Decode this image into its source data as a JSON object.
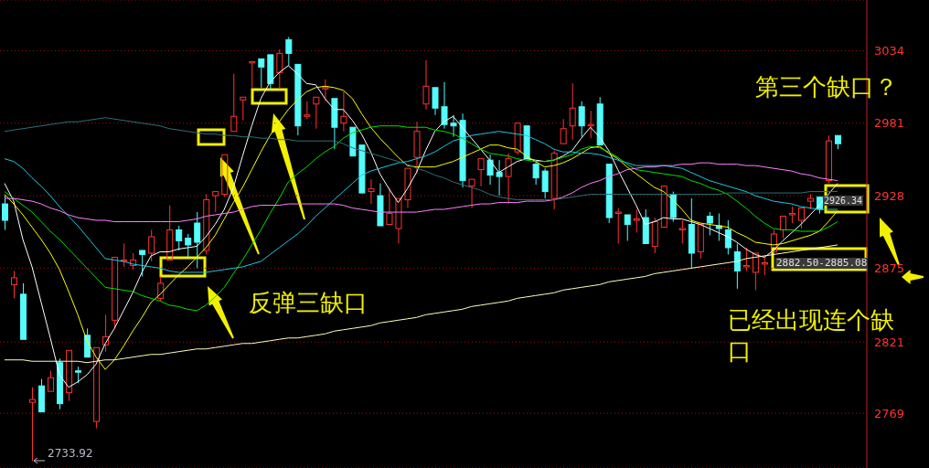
{
  "chart_data": {
    "type": "candlestick",
    "categories": [
      null,
      null,
      null,
      null,
      null,
      null,
      null,
      null,
      null,
      null,
      null,
      null,
      null,
      null,
      null,
      null,
      null,
      null,
      null,
      null,
      null,
      null,
      null,
      null,
      null,
      null,
      null,
      null,
      null,
      null,
      null,
      null,
      null,
      null,
      null,
      null,
      null,
      null,
      null,
      null,
      null,
      null,
      null,
      null,
      null,
      null,
      null,
      null,
      null,
      null,
      null,
      null,
      null,
      null,
      null,
      null,
      null,
      null,
      null,
      null,
      null,
      null,
      null,
      null,
      null,
      null,
      null,
      null,
      null,
      null,
      null,
      null,
      null,
      null,
      null,
      null,
      null,
      null,
      null,
      null,
      null,
      null,
      null,
      null,
      null,
      null,
      null,
      null,
      null,
      null,
      null,
      null
    ],
    "ohlc": [
      [
        2922,
        2928,
        2903,
        2910
      ],
      [
        2863,
        2873,
        2853,
        2868
      ],
      [
        2856,
        2864,
        2823,
        2823
      ],
      [
        2777,
        2788,
        2733.92,
        2779
      ],
      [
        2789,
        2794,
        2770,
        2770
      ],
      [
        2785,
        2800,
        2785,
        2795
      ],
      [
        2806,
        2809,
        2772,
        2776
      ],
      [
        2784,
        2815,
        2778,
        2815
      ],
      [
        2800,
        2803,
        2791,
        2799
      ],
      [
        2826,
        2831,
        2810,
        2810
      ],
      [
        2763,
        2817,
        2758,
        2817
      ],
      [
        2819,
        2841,
        2814,
        2825
      ],
      [
        2837,
        2883,
        2831,
        2883
      ],
      [
        2880,
        2893,
        2876,
        2881
      ],
      [
        2877,
        2886,
        2874,
        2881
      ],
      [
        2888,
        2888,
        2869,
        2885
      ],
      [
        2886,
        2903,
        2880,
        2898
      ],
      [
        2853,
        2869,
        2851,
        2864
      ],
      [
        2881,
        2921,
        2881,
        2903
      ],
      [
        2903,
        2906,
        2888,
        2895
      ],
      [
        2897,
        2900,
        2883,
        2892
      ],
      [
        2908,
        2916,
        2875,
        2894
      ],
      [
        2888,
        2929,
        2885,
        2925
      ],
      [
        2928,
        2931,
        2916,
        2931
      ],
      [
        2929,
        2958,
        2927,
        2958
      ],
      [
        2975,
        3017,
        2975,
        2986
      ],
      [
        2998,
        3000,
        2983,
        3000
      ],
      [
        3025,
        3026,
        3007,
        3026
      ],
      [
        3028,
        3028,
        3007,
        3022
      ],
      [
        3031,
        3031,
        3006,
        3010
      ],
      [
        3018,
        3035,
        3006,
        3032
      ],
      [
        3042,
        3044,
        3023,
        3032
      ],
      [
        3024,
        3024,
        2972,
        2979
      ],
      [
        2986,
        2997,
        2984,
        2987
      ],
      [
        2995,
        3000,
        2977,
        3000
      ],
      [
        3006,
        3013,
        2997,
        3007
      ],
      [
        2999,
        2999,
        2962,
        2978
      ],
      [
        2981,
        3004,
        2975,
        2986
      ],
      [
        2978,
        2978,
        2957,
        2957
      ],
      [
        2965,
        2965,
        2930,
        2930
      ],
      [
        2931,
        2940,
        2922,
        2933
      ],
      [
        2928,
        2937,
        2906,
        2906
      ],
      [
        2907,
        2934,
        2907,
        2915
      ],
      [
        2904,
        2926,
        2893,
        2926
      ],
      [
        2925,
        2948,
        2919,
        2948
      ],
      [
        2956,
        2982,
        2944,
        2975
      ],
      [
        2995,
        3027,
        2991,
        3008
      ],
      [
        3007,
        3007,
        2987,
        2992
      ],
      [
        2993,
        3011,
        2977,
        2980
      ],
      [
        2981,
        2987,
        2971,
        2979
      ],
      [
        2983,
        2988,
        2934,
        2939
      ],
      [
        2935,
        2940,
        2919,
        2940
      ],
      [
        2947,
        2955,
        2935,
        2955
      ],
      [
        2954,
        2958,
        2936,
        2943
      ],
      [
        2945,
        2954,
        2928,
        2942
      ],
      [
        2942,
        2959,
        2922,
        2955
      ],
      [
        2960,
        2981,
        2958,
        2981
      ],
      [
        2979,
        2979,
        2955,
        2955
      ],
      [
        2951,
        2953,
        2936,
        2941
      ],
      [
        2946,
        2948,
        2926,
        2931
      ],
      [
        2926,
        2961,
        2918,
        2959
      ],
      [
        2966,
        2984,
        2966,
        2977
      ],
      [
        2979,
        3010,
        2969,
        2992
      ],
      [
        2993,
        2997,
        2971,
        2979
      ],
      [
        2979,
        2990,
        2970,
        2980
      ],
      [
        2995,
        3000,
        2965,
        2965
      ],
      [
        2951,
        2951,
        2908,
        2912
      ],
      [
        2915,
        2919,
        2893,
        2916
      ],
      [
        2914,
        2914,
        2895,
        2907
      ],
      [
        2910,
        2918,
        2901,
        2911
      ],
      [
        2912,
        2918,
        2893,
        2893
      ],
      [
        2891,
        2912,
        2886,
        2909
      ],
      [
        2905,
        2935,
        2905,
        2935
      ],
      [
        2929,
        2931,
        2909,
        2912
      ],
      [
        2903,
        2910,
        2893,
        2904
      ],
      [
        2907,
        2926,
        2875,
        2886
      ],
      [
        2887,
        2907,
        2882,
        2907
      ],
      [
        2913,
        2916,
        2899,
        2908
      ],
      [
        2906,
        2915,
        2895,
        2904
      ],
      [
        2903,
        2910,
        2885,
        2890
      ],
      [
        2887,
        2893,
        2860,
        2873
      ],
      [
        2876,
        2890,
        2873,
        2877
      ],
      [
        2872,
        2886,
        2859,
        2886
      ],
      [
        2878,
        2883,
        2870,
        2879
      ],
      [
        2887,
        2903,
        2887,
        2900
      ],
      [
        2903,
        2913,
        2897,
        2913
      ],
      [
        2914,
        2920,
        2908,
        2915
      ],
      [
        2910,
        2919,
        2904,
        2919
      ],
      [
        2924,
        2929,
        2918,
        2926
      ],
      [
        2927,
        2927,
        2915,
        2918
      ],
      [
        2939,
        2972,
        2937,
        2968
      ],
      [
        2972,
        2972,
        2962,
        2966
      ]
    ],
    "colors": [
      "#54fcfc",
      "#ff3232",
      "#54fcfc",
      "#ff3232",
      "#54fcfc",
      "#ff3232",
      "#54fcfc",
      "#ff3232",
      "#54fcfc",
      "#54fcfc",
      "#ff3232",
      "#ff3232",
      "#ff3232",
      "#ff3232",
      "#ff3232",
      "#54fcfc",
      "#ff3232",
      "#ff3232",
      "#ff3232",
      "#54fcfc",
      "#54fcfc",
      "#54fcfc",
      "#ff3232",
      "#ff3232",
      "#ff3232",
      "#ff3232",
      "#ff3232",
      "#ff3232",
      "#54fcfc",
      "#54fcfc",
      "#ff3232",
      "#54fcfc",
      "#54fcfc",
      "#ff3232",
      "#ff3232",
      "#ff3232",
      "#54fcfc",
      "#ff3232",
      "#54fcfc",
      "#54fcfc",
      "#ff3232",
      "#54fcfc",
      "#ff3232",
      "#ff3232",
      "#ff3232",
      "#ff3232",
      "#ff3232",
      "#54fcfc",
      "#54fcfc",
      "#54fcfc",
      "#54fcfc",
      "#ff3232",
      "#ff3232",
      "#54fcfc",
      "#54fcfc",
      "#ff3232",
      "#ff3232",
      "#54fcfc",
      "#54fcfc",
      "#54fcfc",
      "#ff3232",
      "#ff3232",
      "#ff3232",
      "#54fcfc",
      "#ff3232",
      "#54fcfc",
      "#54fcfc",
      "#ff3232",
      "#54fcfc",
      "#ff3232",
      "#54fcfc",
      "#ff3232",
      "#ff3232",
      "#54fcfc",
      "#ff3232",
      "#54fcfc",
      "#ff3232",
      "#54fcfc",
      "#54fcfc",
      "#54fcfc",
      "#54fcfc",
      "#ff3232",
      "#ff3232",
      "#ff3232",
      "#ff3232",
      "#ff3232",
      "#ff3232",
      "#ff3232",
      "#ff3232",
      "#54fcfc",
      "#ff3232",
      "#54fcfc"
    ],
    "series": [
      {
        "type": "line",
        "color": "#ffffff",
        "values": [
          2937,
          2924,
          2896,
          2876,
          2850,
          2824,
          2797,
          2788,
          2792,
          2797,
          2805,
          2820,
          2831,
          2844,
          2857,
          2872,
          2884,
          2887,
          2887,
          2889,
          2890,
          2891,
          2898,
          2907,
          2918,
          2934,
          2957,
          2979,
          2999,
          3011,
          3018,
          3023,
          3017,
          3010,
          3009,
          2999,
          2991,
          2991,
          2983,
          2973,
          2960,
          2944,
          2933,
          2923,
          2933,
          2945,
          2961,
          2975,
          2982,
          2986,
          null,
          2970,
          2962,
          2954,
          2945,
          2949,
          2953,
          2955,
          2954,
          2953,
          2954,
          2957,
          2961,
          2970,
          2978,
          2971,
          2961,
          2947,
          2934,
          2921,
          2907,
          2909,
          2912,
          2911,
          2911,
          2909,
          2907,
          2904,
          2901,
          2898,
          2894,
          2889,
          2885,
          2883,
          2888,
          2895,
          2901,
          2907,
          2914,
          2921,
          2929,
          2937
        ]
      },
      {
        "type": "line",
        "color": "#ffff00",
        "values": [
          2929,
          2922,
          2914,
          2905,
          2896,
          2886,
          2874,
          2858,
          2841,
          2822,
          2810,
          2801,
          2808,
          2818,
          2829,
          2839,
          2850,
          2856,
          2863,
          2870,
          2876,
          2883,
          2890,
          2899,
          2911,
          2923,
          2934,
          2947,
          2960,
          2972,
          2982,
          2991,
          2998,
          3004,
          3007,
          3008,
          3007,
          3005,
          2999,
          2988,
          2978,
          2970,
          2963,
          2956,
          2950,
          2949,
          2949,
          2949,
          2951,
          2953,
          2956,
          2959,
          2962,
          2965,
          2965,
          2963,
          2962,
          2957,
          2953,
          2949,
          2950,
          2952,
          2955,
          2959,
          2963,
          2964,
          2959,
          2955,
          2949,
          2944,
          2939,
          2934,
          2931,
          2925,
          2918,
          2910,
          2908,
          2907,
          2906,
          2905,
          2901,
          2898,
          2894,
          2893,
          2892,
          2893,
          2895,
          2897,
          2899,
          2902,
          2909,
          2917
        ]
      },
      {
        "type": "line",
        "color": "#00e000",
        "values": [
          2931,
          2926,
          2921,
          2916,
          2909,
          2902,
          2896,
          2889,
          2882,
          2875,
          2868,
          2861,
          2860,
          2859,
          2858,
          2855,
          2853,
          2851,
          2848,
          2847,
          2845,
          2844,
          2848,
          2854,
          2861,
          2871,
          2881,
          2892,
          2903,
          2915,
          2926,
          2938,
          2944,
          2949,
          2955,
          2960,
          2964,
          2970,
          2974,
          2976,
          2978,
          2979,
          2979,
          2979,
          2978,
          2978,
          2978,
          2976,
          2975,
          2973,
          2970,
          2966,
          2962,
          2959,
          2958,
          2957,
          2955,
          2954,
          2953,
          2953,
          2954,
          2956,
          2958,
          2962,
          2964,
          2963,
          2960,
          2956,
          2951,
          2947,
          2946,
          2945,
          2944,
          2943,
          2942,
          2939,
          2937,
          2934,
          2932,
          2929,
          2924,
          2919,
          2913,
          2908,
          2904,
          2903,
          2903,
          2902,
          2902,
          2902,
          2905,
          2909
        ]
      },
      {
        "type": "line",
        "color": "#1ec8e6",
        "values": [
          2955,
          2953,
          2948,
          2941,
          2935,
          2928,
          2920,
          2913,
          2906,
          2898,
          2890,
          2882,
          2881,
          2880,
          2878,
          2877,
          2876,
          2875,
          2873,
          2872,
          2872,
          2872,
          2872,
          2873,
          2874,
          2875,
          2876,
          2878,
          2880,
          2885,
          2890,
          2895,
          2900,
          2906,
          2913,
          2919,
          2925,
          2931,
          2937,
          2943,
          2946,
          2948,
          2950,
          2952,
          2953,
          2955,
          2957,
          2960,
          2964,
          2968,
          2970,
          2972,
          2973,
          2974,
          2975,
          2974,
          2973,
          2972,
          2969,
          2966,
          2962,
          2960,
          2960,
          2959,
          2959,
          2958,
          2956,
          2954,
          2952,
          2950,
          2950,
          2950,
          2950,
          2949,
          2948,
          2945,
          2942,
          2939,
          2937,
          2935,
          2933,
          2931,
          2928,
          2926,
          2924,
          2923,
          2922,
          2920,
          2919,
          2918,
          2918,
          2918
        ]
      },
      {
        "type": "line",
        "color": "#ff80ff",
        "values": [
          2926,
          2926,
          2925,
          2924,
          2922,
          2919,
          2917,
          2914,
          2912,
          2911,
          2910,
          2910,
          2909,
          2909,
          2909,
          2909,
          2909,
          2909,
          2909,
          2909,
          2910,
          2911,
          2913,
          2914,
          2915,
          2916,
          2918,
          2920,
          2921,
          2921,
          2921,
          2922,
          2922,
          2922,
          2922,
          2922,
          2922,
          2921,
          2919,
          2918,
          2917,
          2916,
          2916,
          2916,
          2916,
          2916,
          2917,
          2918,
          2918,
          2919,
          2920,
          2921,
          2922,
          2922,
          2923,
          2923,
          2923,
          2924,
          2924,
          2924,
          2925,
          2927,
          2930,
          2934,
          2937,
          2939,
          2942,
          2944,
          2947,
          2948,
          2949,
          2949,
          2950,
          2950,
          2951,
          2951,
          2952,
          2952,
          2951,
          2951,
          2951,
          2950,
          2950,
          2949,
          2948,
          2947,
          2946,
          2944,
          2943,
          2941,
          2940,
          2939
        ]
      },
      {
        "type": "line",
        "color": "#2e7078",
        "values": [
          2975,
          2976,
          2977,
          2978,
          2979,
          2980,
          2981,
          2982,
          2982,
          2983,
          2984,
          2985,
          2984,
          2983,
          2982,
          2981,
          2980,
          2979,
          2977,
          2976,
          2975,
          2974,
          2973,
          2973,
          2972,
          2972,
          2971,
          2971,
          2970,
          2970,
          2969,
          2969,
          2968,
          2968,
          2968,
          2968,
          2968,
          2966,
          2963,
          2961,
          2959,
          2957,
          2955,
          2953,
          2951,
          2948,
          2946,
          2943,
          2941,
          2938,
          2936,
          2934,
          2932,
          2929,
          2927,
          2926,
          2925,
          2925,
          2925,
          2925,
          2925,
          2926,
          2927,
          2928,
          2929,
          2929,
          2929,
          2929,
          2929,
          2929,
          2929,
          2929,
          2929,
          2929,
          2929,
          2929,
          2929,
          2929,
          2929,
          2930,
          2930,
          2930,
          2930,
          2930,
          2930,
          2930,
          2930,
          2930,
          2931,
          2931,
          2931,
          2931
        ]
      },
      {
        "type": "line",
        "color": "#ffffc0",
        "values": [
          2808,
          2808,
          2808,
          2807,
          2807,
          2807,
          2807,
          2807,
          2807,
          2806,
          2807,
          2808,
          2808,
          2809,
          2810,
          2811,
          2812,
          2812,
          2813,
          2814,
          2815,
          2816,
          2816,
          2817,
          2818,
          2819,
          2820,
          2820,
          2821,
          2822,
          2823,
          2824,
          2824,
          2825,
          2826,
          2827,
          2829,
          2830,
          2831,
          2832,
          2833,
          2835,
          2836,
          2837,
          2838,
          2839,
          2841,
          2842,
          2843,
          2844,
          2845,
          2847,
          2848,
          2849,
          2850,
          2851,
          2853,
          2854,
          2855,
          2856,
          2857,
          2859,
          2860,
          2861,
          2862,
          2863,
          2865,
          2866,
          2867,
          2868,
          2869,
          2871,
          2872,
          2873,
          2874,
          2875,
          2876,
          2877,
          2878,
          2879,
          2880,
          2882,
          2883,
          2884,
          2885,
          2886,
          2887,
          2888,
          2889,
          2890,
          2891,
          2892
        ]
      }
    ],
    "ylim": [
      2729,
      3071
    ],
    "yticks": [
      2769,
      2821,
      2875,
      2928,
      2981,
      3034
    ],
    "grid": "y",
    "tick_labels": "y",
    "marker": "none",
    "annotations": [
      "反弹三缺口",
      "第三个缺口？",
      "已经出现连个缺口",
      "2926.34",
      "2882.50-2885.08",
      "2733.92"
    ]
  }
}
